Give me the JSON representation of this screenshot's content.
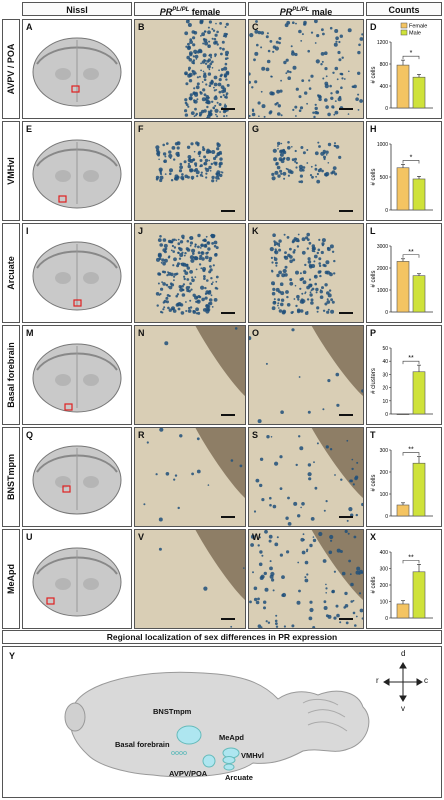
{
  "headers": {
    "nissl": "Nissl",
    "female_prefix": "PR",
    "female_sup": "PL/PL",
    "female_suffix": " female",
    "male_prefix": "PR",
    "male_sup": "PL/PL",
    "male_suffix": " male",
    "counts": "Counts"
  },
  "rows": [
    {
      "label": "AVPV / POA",
      "letters": [
        "A",
        "B",
        "C",
        "D"
      ],
      "ylabel": "# cells",
      "ylim": [
        0,
        1200
      ],
      "ticks": [
        "0",
        "400",
        "800",
        "1200"
      ],
      "female": 780,
      "male": 560,
      "f_err": 90,
      "m_err": 50,
      "sig": "*",
      "legend": true
    },
    {
      "label": "VMHvl",
      "letters": [
        "E",
        "F",
        "G",
        "H"
      ],
      "ylabel": "# cells",
      "ylim": [
        0,
        1000
      ],
      "ticks": [
        "0",
        "500",
        "1000"
      ],
      "female": 640,
      "male": 470,
      "f_err": 50,
      "m_err": 40,
      "sig": "*",
      "legend": false
    },
    {
      "label": "Arcuate",
      "letters": [
        "I",
        "J",
        "K",
        "L"
      ],
      "ylabel": "# cells",
      "ylim": [
        0,
        3000
      ],
      "ticks": [
        "0",
        "1000",
        "2000",
        "3000"
      ],
      "female": 2300,
      "male": 1650,
      "f_err": 120,
      "m_err": 90,
      "sig": "**",
      "legend": false
    },
    {
      "label": "Basal forebrain",
      "letters": [
        "M",
        "N",
        "O",
        "P"
      ],
      "ylabel": "# clusters",
      "ylim": [
        0,
        50
      ],
      "ticks": [
        "0",
        "10",
        "20",
        "30",
        "40",
        "50"
      ],
      "female": 0,
      "male": 32,
      "f_err": 0,
      "m_err": 5,
      "sig": "**",
      "legend": false
    },
    {
      "label": "BNSTmpm",
      "letters": [
        "Q",
        "R",
        "S",
        "T"
      ],
      "ylabel": "# cells",
      "ylim": [
        0,
        300
      ],
      "ticks": [
        "0",
        "100",
        "200",
        "300"
      ],
      "female": 50,
      "male": 240,
      "f_err": 10,
      "m_err": 30,
      "sig": "**",
      "legend": false
    },
    {
      "label": "MeApd",
      "letters": [
        "U",
        "V",
        "W",
        "X"
      ],
      "ylabel": "# cells",
      "ylim": [
        0,
        400
      ],
      "ticks": [
        "0",
        "100",
        "200",
        "300",
        "400"
      ],
      "female": 85,
      "male": 280,
      "f_err": 20,
      "m_err": 45,
      "sig": "**",
      "legend": false
    }
  ],
  "legend": {
    "female": "Female",
    "male": "Male"
  },
  "colors": {
    "female": "#f4c462",
    "male": "#cfe23a",
    "bar_edge": "#555555",
    "stain": "#1f4f7a"
  },
  "bottom_title": "Regional localization of sex differences in PR expression",
  "schematic": {
    "letter": "Y",
    "labels": {
      "bnst": "BNSTmpm",
      "meapd": "MeApd",
      "basal": "Basal forebrain",
      "vmh": "VMHvl",
      "avpv": "AVPV/POA",
      "arc": "Arcuate"
    },
    "axes": {
      "d": "d",
      "v": "v",
      "r": "r",
      "c": "c"
    }
  }
}
